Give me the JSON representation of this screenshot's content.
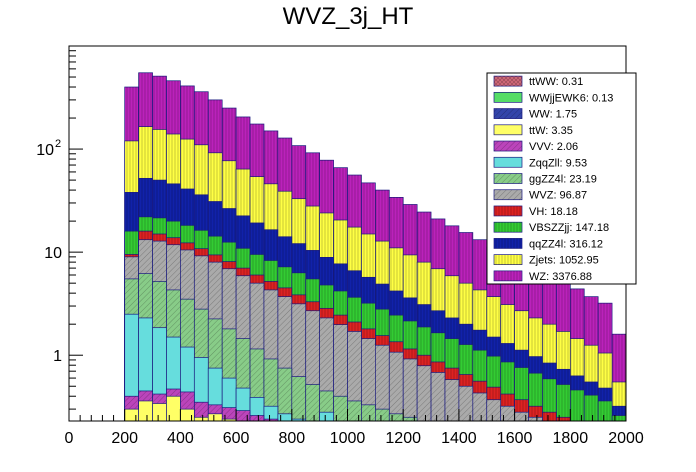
{
  "chart_data": {
    "type": "bar",
    "subtype": "stacked-histogram",
    "title": "WVZ_3j_HT",
    "xlabel": "",
    "ylabel": "",
    "xlim": [
      0,
      2000
    ],
    "ylim": [
      0.23,
      1000
    ],
    "yscale": "log",
    "bin_width": 50,
    "x_ticks": [
      "0",
      "200",
      "400",
      "600",
      "800",
      "1000",
      "1200",
      "1400",
      "1600",
      "1800",
      "2000"
    ],
    "y_ticks": [
      {
        "value": 1,
        "label": "1"
      },
      {
        "value": 10,
        "label": "10"
      },
      {
        "value": 100,
        "label": "10",
        "exponent": "2"
      }
    ],
    "legend_position": "top-right",
    "series": [
      {
        "name": "ttWW",
        "total": "0.31",
        "color": "#cc6677",
        "hatch": "cross"
      },
      {
        "name": "WWjjEWK6",
        "total": "0.13",
        "color": "#55dd66",
        "hatch": "none"
      },
      {
        "name": "WW",
        "total": "1.75",
        "color": "#3344aa",
        "hatch": "diag"
      },
      {
        "name": "ttW",
        "total": "3.35",
        "color": "#ffff66",
        "hatch": "none"
      },
      {
        "name": "VVV",
        "total": "2.06",
        "color": "#bb44bb",
        "hatch": "diag"
      },
      {
        "name": "ZqqZll",
        "total": "9.53",
        "color": "#66dddd",
        "hatch": "none"
      },
      {
        "name": "ggZZ4l",
        "total": "23.19",
        "color": "#88cc88",
        "hatch": "diag"
      },
      {
        "name": "WVZ",
        "total": "96.87",
        "color": "#aaaaaa",
        "hatch": "diag"
      },
      {
        "name": "VH",
        "total": "18.18",
        "color": "#dd2222",
        "hatch": "vert"
      },
      {
        "name": "VBSZZjj",
        "total": "147.18",
        "color": "#33cc33",
        "hatch": "vert"
      },
      {
        "name": "qqZZ4l",
        "total": "316.12",
        "color": "#1122aa",
        "hatch": "vert"
      },
      {
        "name": "Zjets",
        "total": "1052.95",
        "color": "#ffff44",
        "hatch": "vert"
      },
      {
        "name": "WZ",
        "total": "3376.88",
        "color": "#bb22bb",
        "hatch": "vert"
      }
    ],
    "bins": [
      200,
      250,
      300,
      350,
      400,
      450,
      500,
      550,
      600,
      650,
      700,
      750,
      800,
      850,
      900,
      950,
      1000,
      1050,
      1100,
      1150,
      1200,
      1250,
      1300,
      1350,
      1400,
      1450,
      1500,
      1550,
      1600,
      1650,
      1700,
      1750,
      1800,
      1850,
      1900,
      1950
    ],
    "stack_tops": {
      "WZ": [
        400,
        550,
        510,
        460,
        410,
        360,
        300,
        250,
        205,
        175,
        150,
        128,
        108,
        92,
        78,
        66,
        56,
        47,
        40,
        34,
        29,
        24.5,
        21,
        18,
        15.5,
        13.2,
        11.2,
        9.6,
        8.2,
        7.0,
        6.0,
        5.1,
        4.4,
        3.7,
        3.2,
        1.6
      ],
      "Zjets": [
        120,
        165,
        155,
        140,
        125,
        110,
        92,
        77,
        64,
        54,
        46,
        39,
        33,
        28,
        24,
        20.5,
        17.5,
        15,
        12.8,
        11,
        9.4,
        8.0,
        6.9,
        5.9,
        5.0,
        4.3,
        3.7,
        3.1,
        2.7,
        2.3,
        2.0,
        1.7,
        1.45,
        1.25,
        1.05,
        0.55
      ],
      "qqZZ4l": [
        38,
        52,
        50,
        46,
        41,
        36,
        31,
        26.5,
        22.5,
        19.2,
        16.5,
        14.1,
        12.1,
        10.4,
        8.9,
        7.7,
        6.6,
        5.7,
        4.9,
        4.2,
        3.6,
        3.1,
        2.7,
        2.3,
        2.0,
        1.75,
        1.5,
        1.3,
        1.12,
        0.97,
        0.84,
        0.73,
        0.63,
        0.55,
        0.48,
        0.32
      ],
      "VBSZZjj": [
        16,
        22,
        21.5,
        20,
        18.2,
        16.3,
        14.3,
        12.5,
        10.9,
        9.5,
        8.3,
        7.2,
        6.3,
        5.5,
        4.8,
        4.2,
        3.65,
        3.2,
        2.8,
        2.45,
        2.15,
        1.88,
        1.65,
        1.45,
        1.27,
        1.12,
        0.98,
        0.86,
        0.76,
        0.67,
        0.59,
        0.52,
        0.46,
        0.41,
        0.36,
        0.26
      ],
      "VH": [
        9.5,
        16,
        15,
        13.8,
        12.3,
        10.8,
        9.4,
        8.1,
        7.0,
        6.0,
        5.2,
        4.5,
        3.85,
        3.3,
        2.85,
        2.45,
        2.1,
        1.8,
        1.55,
        1.35,
        1.15,
        1.0,
        0.86,
        0.75,
        0.65,
        0.56,
        0.49,
        0.42,
        0.37,
        0.32,
        0.28,
        0.25,
        0.23,
        0.23,
        0.23,
        0.23
      ],
      "WVZ": [
        9.0,
        13.2,
        12.8,
        11.8,
        10.5,
        9.2,
        8.0,
        6.9,
        5.9,
        5.0,
        4.3,
        3.7,
        3.15,
        2.7,
        2.3,
        1.98,
        1.7,
        1.45,
        1.25,
        1.07,
        0.92,
        0.79,
        0.68,
        0.58,
        0.5,
        0.43,
        0.37,
        0.32,
        0.28,
        0.25,
        0.23,
        0.23,
        0.23,
        0.23,
        0.23,
        0.23
      ],
      "ggZZ4l": [
        5.5,
        6.2,
        5.2,
        4.3,
        3.5,
        2.8,
        2.25,
        1.8,
        1.45,
        1.15,
        0.92,
        0.75,
        0.62,
        0.52,
        0.45,
        0.4,
        0.36,
        0.33,
        0.3,
        0.27,
        0.25,
        0.23,
        0.23,
        0.23,
        0.23,
        0.23,
        0.23,
        0.23,
        0.23,
        0.23,
        0.23,
        0.23,
        0.23,
        0.23,
        0.23,
        0.23
      ],
      "ZqqZll": [
        2.5,
        2.3,
        1.85,
        1.5,
        1.2,
        0.95,
        0.75,
        0.6,
        0.48,
        0.39,
        0.32,
        0.27,
        0.24,
        0.23,
        0.28,
        0.23,
        0.23,
        0.23,
        0.23,
        0.23,
        0.23,
        0.23,
        0.23,
        0.23,
        0.23,
        0.23,
        0.23,
        0.23,
        0.23,
        0.23,
        0.23,
        0.23,
        0.23,
        0.23,
        0.23,
        0.23
      ],
      "VVV": [
        0.4,
        0.45,
        0.42,
        0.47,
        0.44,
        0.35,
        0.33,
        0.31,
        0.29,
        0.26,
        0.24,
        0.23,
        0.23,
        0.23,
        0.23,
        0.23,
        0.23,
        0.23,
        0.23,
        0.23,
        0.23,
        0.23,
        0.23,
        0.23,
        0.23,
        0.23,
        0.23,
        0.23,
        0.23,
        0.23,
        0.23,
        0.23,
        0.23,
        0.23,
        0.23,
        0.23
      ],
      "ttW": [
        0.3,
        0.36,
        0.34,
        0.4,
        0.3,
        0.25,
        0.27,
        0.24,
        0.23,
        0.23,
        0.23,
        0.23,
        0.23,
        0.23,
        0.23,
        0.23,
        0.23,
        0.23,
        0.23,
        0.23,
        0.23,
        0.23,
        0.23,
        0.23,
        0.23,
        0.23,
        0.23,
        0.23,
        0.23,
        0.23,
        0.23,
        0.23,
        0.23,
        0.23,
        0.23,
        0.23
      ]
    }
  }
}
